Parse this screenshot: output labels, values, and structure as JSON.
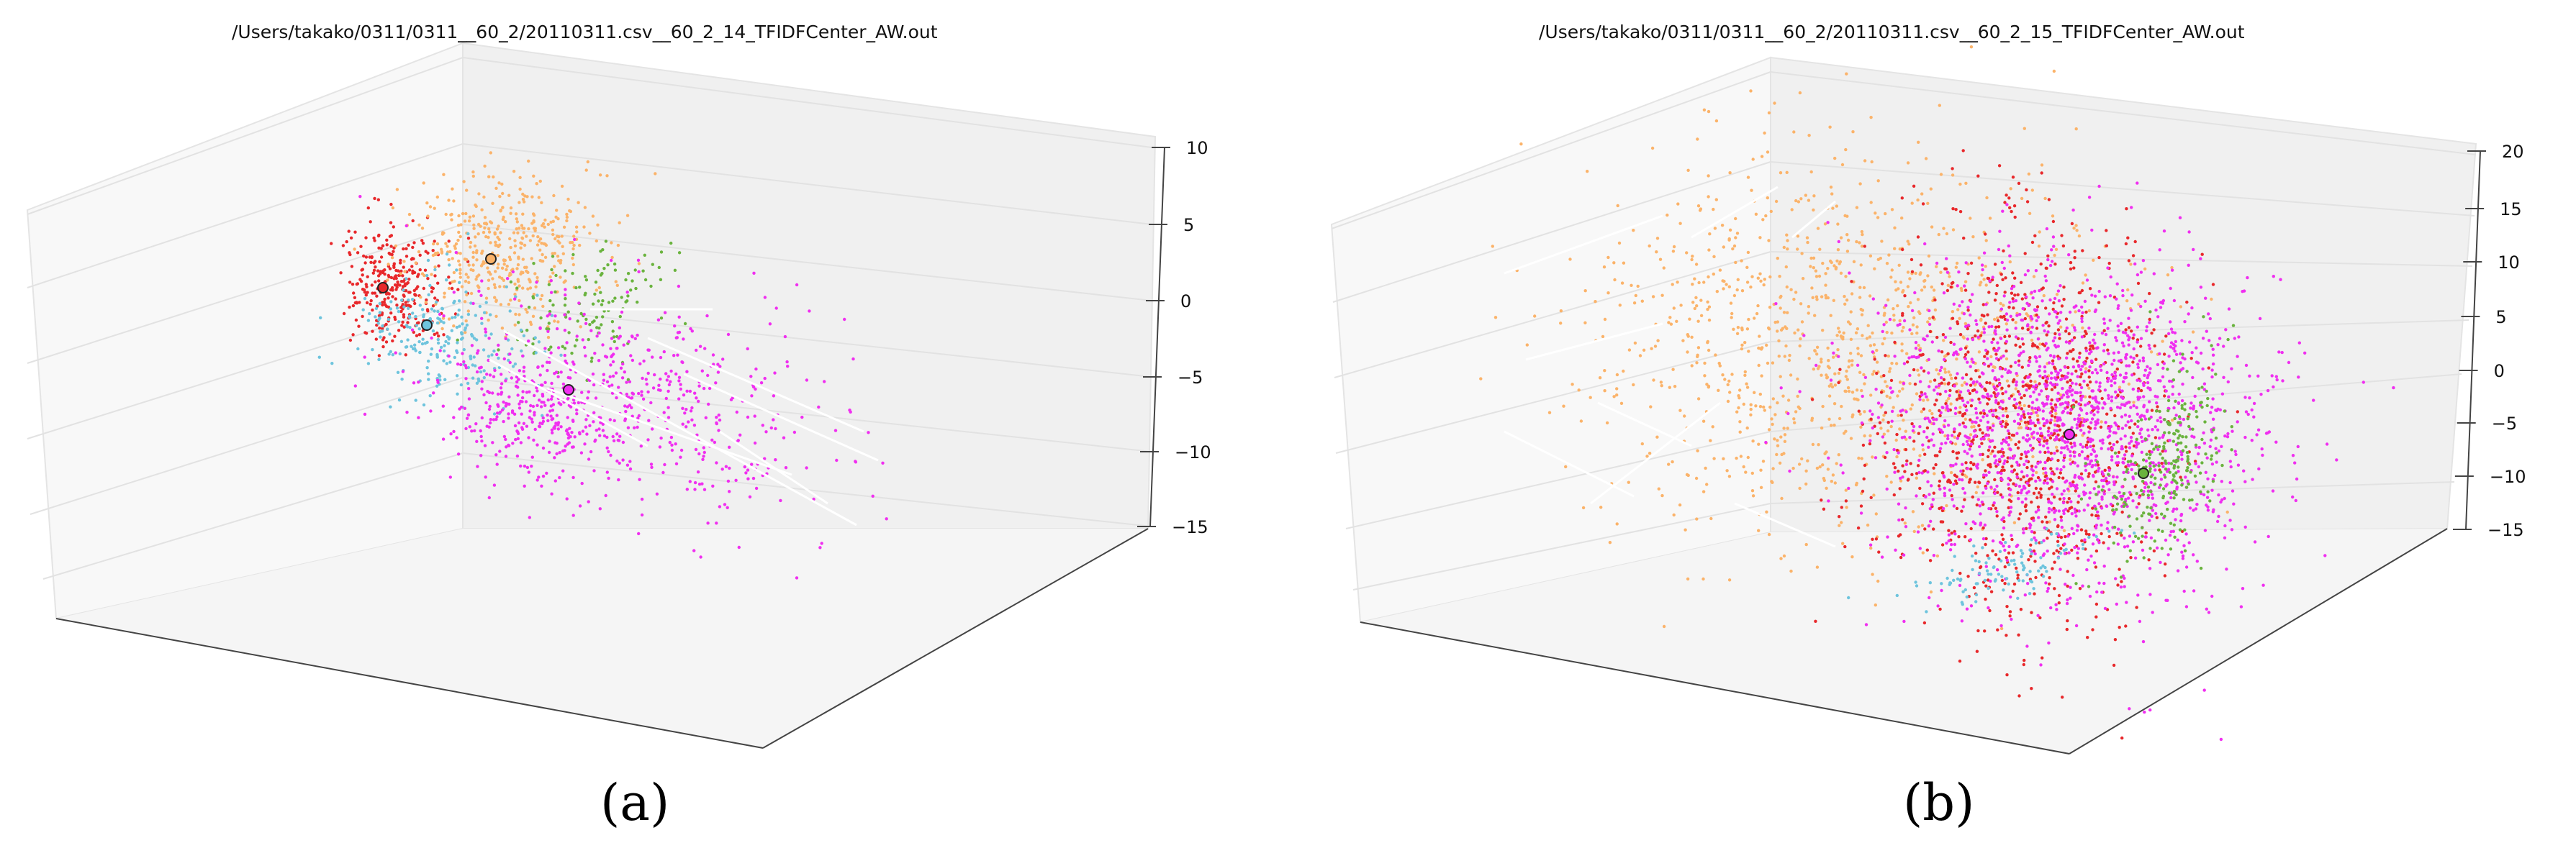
{
  "figure": {
    "colors": {
      "red": "#e8282b",
      "orange": "#fbb36a",
      "green": "#6ab33e",
      "cyan": "#6ec4dd",
      "magenta": "#f02ff0",
      "edge": "#ffffff",
      "pane": "#ececec"
    }
  },
  "chart_data": [
    {
      "type": "scatter",
      "subtype": "3d-scatter",
      "title": "/Users/takako/0311/0311__60_2/20110311.csv__60_2_14_TFIDFCenter_AW.out",
      "panel_label": "(a)",
      "z_ticks": [
        "10",
        "5",
        "0",
        "−5",
        "−10",
        "−15"
      ],
      "zlim": [
        -15,
        10
      ],
      "grid": true,
      "clusters": [
        {
          "color": "red",
          "approx_points": 900
        },
        {
          "color": "orange",
          "approx_points": 1300
        },
        {
          "color": "green",
          "approx_points": 380
        },
        {
          "color": "cyan",
          "approx_points": 700
        },
        {
          "color": "magenta",
          "approx_points": 1650
        }
      ],
      "centroids": [
        {
          "color": "red",
          "z": 1
        },
        {
          "color": "orange",
          "z": 3
        },
        {
          "color": "cyan",
          "z": -2
        },
        {
          "color": "magenta",
          "z": -6
        }
      ]
    },
    {
      "type": "scatter",
      "subtype": "3d-scatter",
      "title": "/Users/takako/0311/0311__60_2/20110311.csv__60_2_15_TFIDFCenter_AW.out",
      "panel_label": "(b)",
      "z_ticks": [
        "20",
        "15",
        "10",
        "5",
        "0",
        "−5",
        "−10",
        "−15"
      ],
      "zlim": [
        -15,
        20
      ],
      "grid": true,
      "clusters": [
        {
          "color": "orange",
          "approx_points": 3200
        },
        {
          "color": "red",
          "approx_points": 3000
        },
        {
          "color": "magenta",
          "approx_points": 5200
        },
        {
          "color": "green",
          "approx_points": 700
        },
        {
          "color": "cyan",
          "approx_points": 300
        }
      ],
      "centroids": [
        {
          "color": "magenta",
          "z": -6
        },
        {
          "color": "green",
          "z": -10
        }
      ]
    }
  ]
}
